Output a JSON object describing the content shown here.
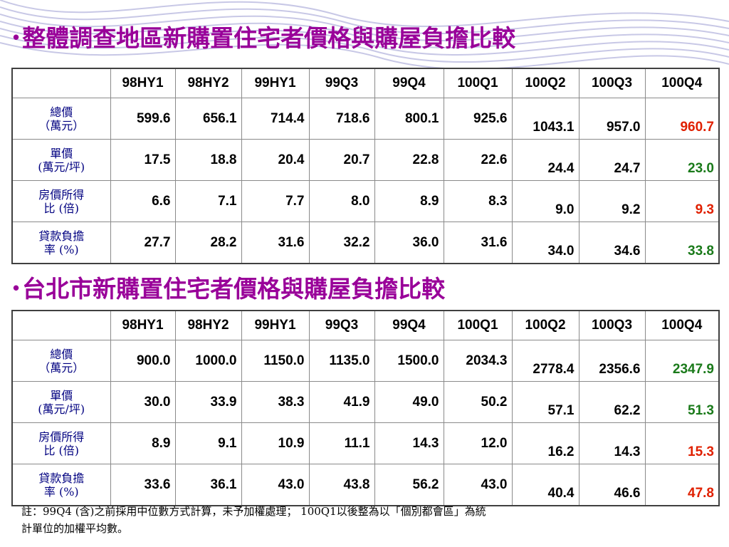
{
  "section1": {
    "title": "整體調查地區新購置住宅者價格與購屋負擔比較",
    "columns": [
      "98HY1",
      "98HY2",
      "99HY1",
      "99Q3",
      "99Q4",
      "100Q1",
      "100Q2",
      "100Q3",
      "100Q4"
    ],
    "rows": [
      {
        "label_line1": "總價",
        "label_line2": "（萬元）",
        "values": [
          "599.6",
          "656.1",
          "714.4",
          "718.6",
          "800.1",
          "925.6",
          "1043.1",
          "957.0",
          "960.7"
        ]
      },
      {
        "label_line1": "單價",
        "label_line2": "(萬元/坪)",
        "values": [
          "17.5",
          "18.8",
          "20.4",
          "20.7",
          "22.8",
          "22.6",
          "24.4",
          "24.7",
          "23.0"
        ]
      },
      {
        "label_line1": "房價所得",
        "label_line2": "比 (倍)",
        "values": [
          "6.6",
          "7.1",
          "7.7",
          "8.0",
          "8.9",
          "8.3",
          "9.0",
          "9.2",
          "9.3"
        ]
      },
      {
        "label_line1": "貸款負擔",
        "label_line2": "率 (%)",
        "values": [
          "27.7",
          "28.2",
          "31.6",
          "32.2",
          "36.0",
          "31.6",
          "34.0",
          "34.6",
          "33.8"
        ]
      }
    ],
    "last_col_colors": [
      "#e02000",
      "#1a7a1a",
      "#e02000",
      "#1a7a1a"
    ]
  },
  "section2": {
    "title": "台北市新購置住宅者價格與購屋負擔比較",
    "columns": [
      "98HY1",
      "98HY2",
      "99HY1",
      "99Q3",
      "99Q4",
      "100Q1",
      "100Q2",
      "100Q3",
      "100Q4"
    ],
    "rows": [
      {
        "label_line1": "總價",
        "label_line2": "（萬元）",
        "values": [
          "900.0",
          "1000.0",
          "1150.0",
          "1135.0",
          "1500.0",
          "2034.3",
          "2778.4",
          "2356.6",
          "2347.9"
        ]
      },
      {
        "label_line1": "單價",
        "label_line2": "(萬元/坪)",
        "values": [
          "30.0",
          "33.9",
          "38.3",
          "41.9",
          "49.0",
          "50.2",
          "57.1",
          "62.2",
          "51.3"
        ]
      },
      {
        "label_line1": "房價所得",
        "label_line2": "比 (倍)",
        "values": [
          "8.9",
          "9.1",
          "10.9",
          "11.1",
          "14.3",
          "12.0",
          "16.2",
          "14.3",
          "15.3"
        ]
      },
      {
        "label_line1": "貸款負擔",
        "label_line2": "率 (%)",
        "values": [
          "33.6",
          "36.1",
          "43.0",
          "43.8",
          "56.2",
          "43.0",
          "40.4",
          "46.6",
          "47.8"
        ]
      }
    ],
    "last_col_colors": [
      "#1a7a1a",
      "#1a7a1a",
      "#e02000",
      "#e02000"
    ]
  },
  "note": {
    "line1": "註：99Q4 (含)之前採用中位數方式計算，未予加權處理； 100Q1以後整為以「個別都會區」為統",
    "line2": "計單位的加權平均數。"
  },
  "colors": {
    "title": "#990099",
    "row_label": "#000080"
  }
}
